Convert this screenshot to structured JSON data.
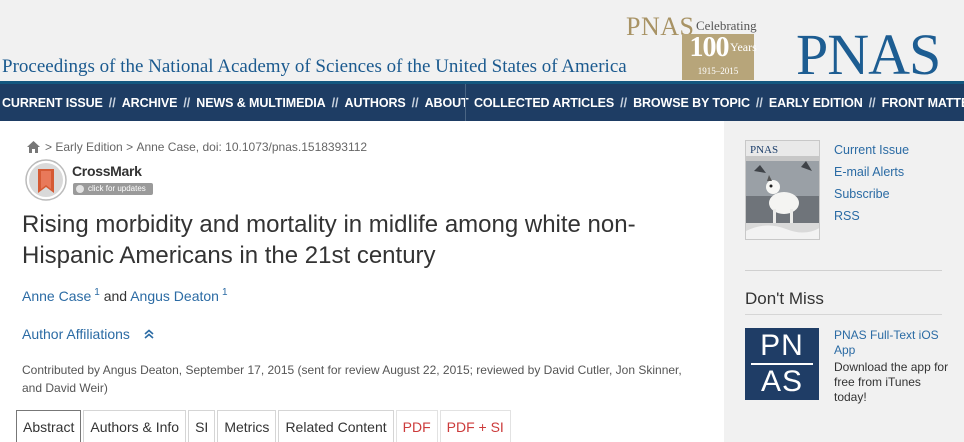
{
  "header": {
    "journal_name": "Proceedings of the National Academy of Sciences of the United States of America",
    "centennial": {
      "pnas": "PNAS",
      "celebrating": "Celebrating",
      "number": "100",
      "years": "Years",
      "range": "1915–2015"
    },
    "logo": "PNAS"
  },
  "nav": {
    "left": [
      "CURRENT ISSUE",
      "ARCHIVE",
      "NEWS & MULTIMEDIA",
      "AUTHORS",
      "ABOUT"
    ],
    "right": [
      "COLLECTED ARTICLES",
      "BROWSE BY TOPIC",
      "EARLY EDITION",
      "FRONT MATTER"
    ],
    "separator": "//"
  },
  "breadcrumb": {
    "items": [
      "Early Edition",
      "Anne Case, doi: 10.1073/pnas.1518393112"
    ],
    "separator": ">"
  },
  "crossmark": {
    "title": "CrossMark",
    "subtitle": "click for updates"
  },
  "article": {
    "title": "Rising morbidity and mortality in midlife among white non-Hispanic Americans in the 21st century",
    "authors": [
      {
        "name": "Anne Case",
        "sup": "1"
      },
      {
        "name": "Angus Deaton",
        "sup": "1"
      }
    ],
    "author_joiner": "and",
    "affiliations_label": "Author Affiliations",
    "contributed": "Contributed by Angus Deaton, September 17, 2015 (sent for review August 22, 2015; reviewed by David Cutler, Jon Skinner, and David Weir)"
  },
  "tabs": [
    {
      "label": "Abstract",
      "active": true
    },
    {
      "label": "Authors & Info"
    },
    {
      "label": "SI"
    },
    {
      "label": "Metrics"
    },
    {
      "label": "Related Content"
    },
    {
      "label": "PDF",
      "pdf": true
    },
    {
      "label": "PDF + SI",
      "pdf": true
    }
  ],
  "sidebar": {
    "cover_title": "PNAS",
    "quick_links": [
      "Current Issue",
      "E-mail Alerts",
      "Subscribe",
      "RSS"
    ],
    "dont_miss": "Don't Miss",
    "app_tile": {
      "line1": "PN",
      "line2": "AS"
    },
    "app_title": "PNAS Full-Text iOS App",
    "app_desc": "Download the app for free from iTunes today!"
  },
  "colors": {
    "nav_bg": "#1e3d64",
    "link": "#2b6ba4",
    "logo": "#1d5d92",
    "pdf": "#cc3b3b",
    "centennial_gold": "#b7a57a"
  }
}
